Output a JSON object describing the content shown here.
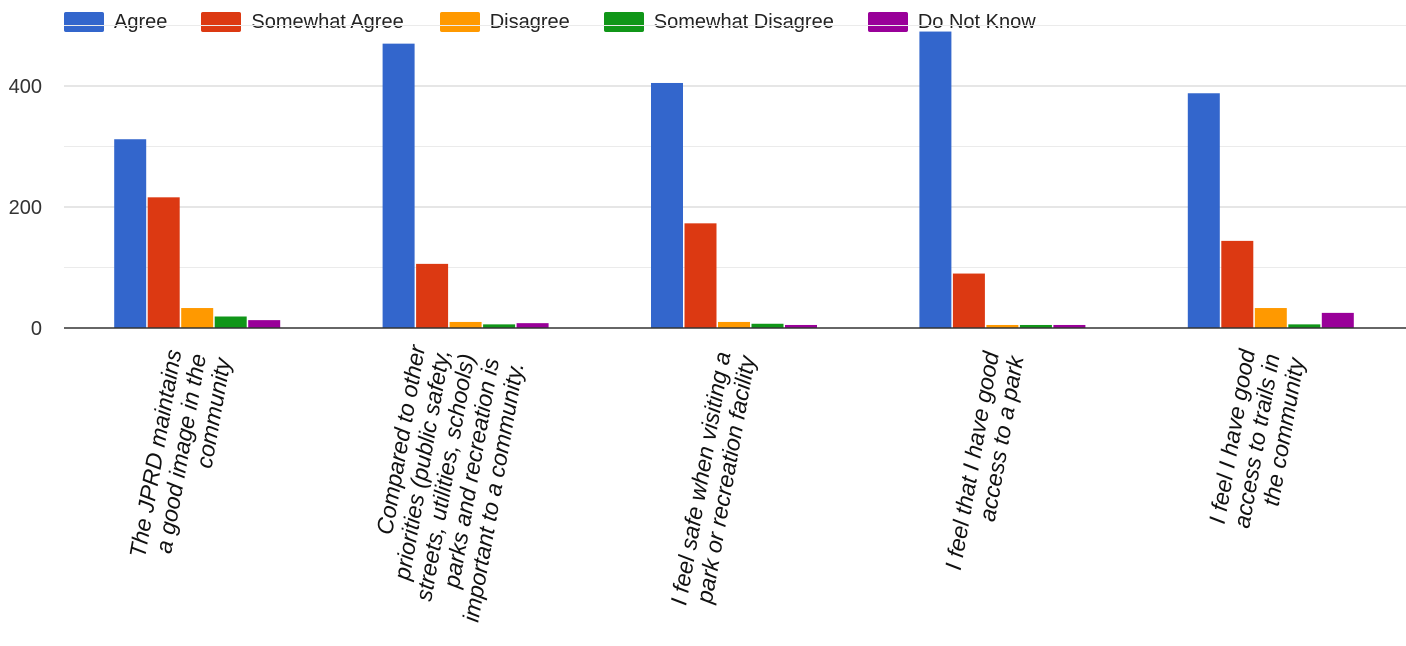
{
  "chart_data": {
    "type": "bar",
    "categories": [
      "The JPRD maintains a good image in the community",
      "Compared to other priorities (public safety, streets, utilities, schools) parks and recreation is important to a community.",
      "I feel safe when visiting a park or recreation facility",
      "I feel that I have good access to a park",
      "I feel I have good access to trails in the community"
    ],
    "category_lines": [
      [
        "The JPRD maintains",
        "a good image in the",
        "community"
      ],
      [
        "Compared to other",
        "priorities (public safety,",
        "streets, utilities, schools)",
        "parks and recreation is",
        "important to a community."
      ],
      [
        "I feel safe when visiting a",
        "park or recreation facility"
      ],
      [
        "I feel that I have good",
        "access to a park"
      ],
      [
        "I feel I have good",
        "access to trails in",
        "the community"
      ]
    ],
    "series": [
      {
        "name": "Agree",
        "color": "#3366cc",
        "values": [
          312,
          470,
          405,
          490,
          388
        ]
      },
      {
        "name": "Somewhat Agree",
        "color": "#dc3912",
        "values": [
          216,
          106,
          173,
          90,
          144
        ]
      },
      {
        "name": "Disagree",
        "color": "#ff9900",
        "values": [
          33,
          10,
          10,
          5,
          33
        ]
      },
      {
        "name": "Somewhat Disagree",
        "color": "#109618",
        "values": [
          19,
          6,
          7,
          5,
          6
        ]
      },
      {
        "name": "Do Not Know",
        "color": "#990099",
        "values": [
          13,
          8,
          5,
          5,
          25
        ]
      }
    ],
    "y_ticks": [
      "0",
      "200",
      "400"
    ],
    "ylim": [
      0,
      500
    ],
    "grid": true,
    "legend_position": "top-left",
    "title": "",
    "xlabel": "",
    "ylabel": ""
  }
}
